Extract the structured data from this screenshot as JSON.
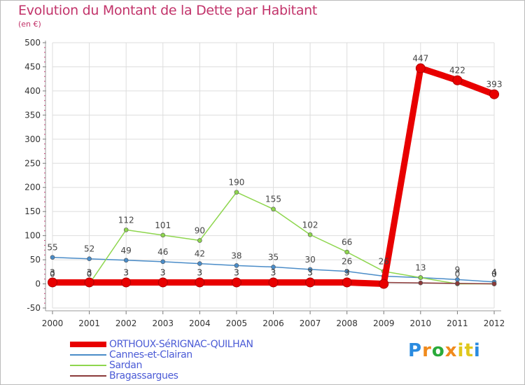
{
  "chart_data": {
    "type": "line",
    "title": "Evolution du Montant de la Dette par Habitant",
    "subtitle": "(en €)",
    "xlabel": "",
    "ylabel": "",
    "ylim": [
      -50,
      500
    ],
    "yticks": [
      "-50",
      "0",
      "50",
      "100",
      "150",
      "200",
      "250",
      "300",
      "350",
      "400",
      "450",
      "500"
    ],
    "categories": [
      "2000",
      "2001",
      "2002",
      "2003",
      "2004",
      "2005",
      "2006",
      "2007",
      "2008",
      "2009",
      "2010",
      "2011",
      "2012"
    ],
    "series": [
      {
        "name": "Cannes-et-Clairan",
        "color": "#4a8cc8",
        "values": [
          55,
          52,
          49,
          46,
          42,
          38,
          35,
          30,
          26,
          16,
          13,
          9,
          4
        ],
        "labels": [
          "55",
          "52",
          "49",
          "46",
          "42",
          "38",
          "35",
          "30",
          "26",
          "",
          "",
          "9",
          "4"
        ]
      },
      {
        "name": "Sardan",
        "color": "#8ed64e",
        "values": [
          0,
          0,
          112,
          101,
          90,
          190,
          155,
          102,
          66,
          26,
          13,
          0,
          0
        ],
        "labels": [
          "0",
          "0",
          "112",
          "101",
          "90",
          "190",
          "155",
          "102",
          "66",
          "26",
          "13",
          "0",
          "0"
        ]
      },
      {
        "name": "Bragassargues",
        "color": "#8b3a3a",
        "values": [
          3,
          3,
          3,
          3,
          3,
          3,
          3,
          3,
          3,
          3,
          2,
          1,
          0
        ],
        "labels": [
          "3",
          "3",
          "3",
          "3",
          "3",
          "3",
          "3",
          "3",
          "3",
          "",
          "",
          "",
          "0"
        ]
      },
      {
        "name": "ORTHOUX-SéRIGNAC-QUILHAN",
        "color": "#e80000",
        "values": [
          3,
          3,
          3,
          3,
          3,
          3,
          3,
          3,
          3,
          0,
          447,
          422,
          393
        ],
        "labels": [
          "3",
          "3",
          "3",
          "3",
          "3",
          "3",
          "3",
          "3",
          "3",
          "",
          "447",
          "422",
          "393"
        ]
      }
    ],
    "legend": [
      "ORTHOUX-SéRIGNAC-QUILHAN",
      "Cannes-et-Clairan",
      "Sardan",
      "Bragassargues"
    ]
  },
  "brand": {
    "name": "Proxiti",
    "letters": [
      "P",
      "r",
      "o",
      "x",
      "i",
      "t",
      "i"
    ],
    "letter_colors": [
      "#2a8be0",
      "#f08a1c",
      "#2aaa3a",
      "#f08a1c",
      "#e0c81c",
      "#e0c81c",
      "#2a8be0"
    ]
  }
}
